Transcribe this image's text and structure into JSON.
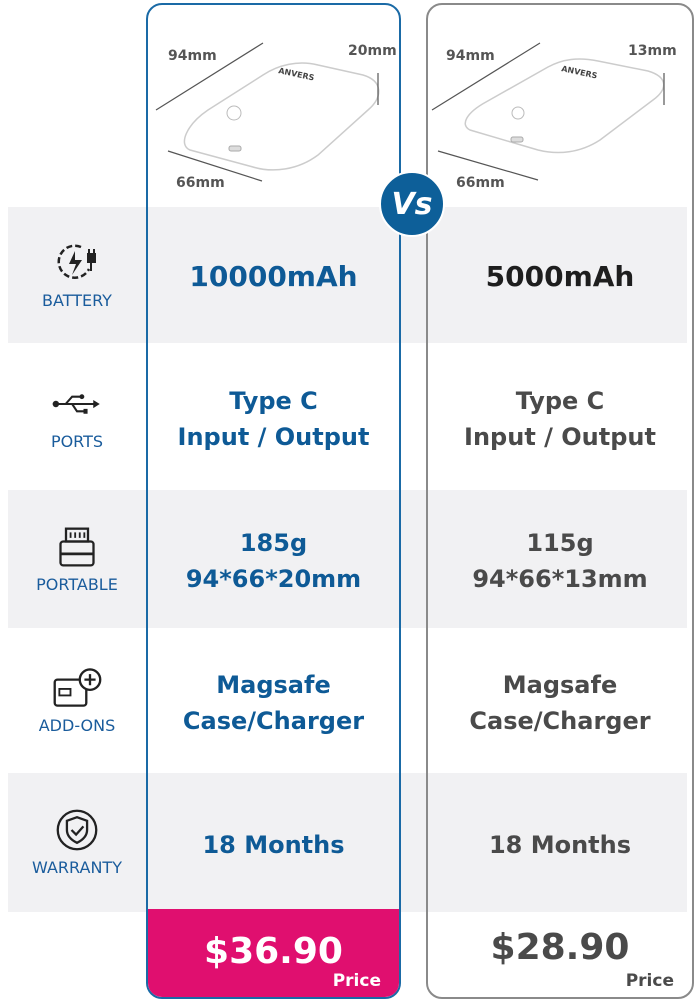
{
  "products": [
    {
      "length": "94mm",
      "width": "66mm",
      "thickness": "20mm",
      "brand": "ANVERS",
      "battery": "10000mAh",
      "ports": [
        "Type C",
        "Input / Output"
      ],
      "portable": [
        "185g",
        "94*66*20mm"
      ],
      "addons": [
        "Magsafe",
        "Case/Charger"
      ],
      "warranty": "18 Months",
      "price": "$36.90",
      "price_label": "Price"
    },
    {
      "length": "94mm",
      "width": "66mm",
      "thickness": "13mm",
      "brand": "ANVERS",
      "battery": "5000mAh",
      "ports": [
        "Type C",
        "Input / Output"
      ],
      "portable": [
        "115g",
        "94*66*13mm"
      ],
      "addons": [
        "Magsafe",
        "Case/Charger"
      ],
      "warranty": "18 Months",
      "price": "$28.90",
      "price_label": "Price"
    }
  ],
  "vs": "Vs",
  "features": [
    {
      "label": "BATTERY",
      "icon": "battery-charge-icon"
    },
    {
      "label": "PORTS",
      "icon": "usb-icon"
    },
    {
      "label": "PORTABLE",
      "icon": "power-bank-icon"
    },
    {
      "label": "ADD-ONS",
      "icon": "add-on-icon"
    },
    {
      "label": "WARRANTY",
      "icon": "shield-check-icon"
    }
  ],
  "colors": {
    "accent": "#0e5a96",
    "price_highlight": "#e00f6f",
    "band": "#f1f1f3"
  }
}
